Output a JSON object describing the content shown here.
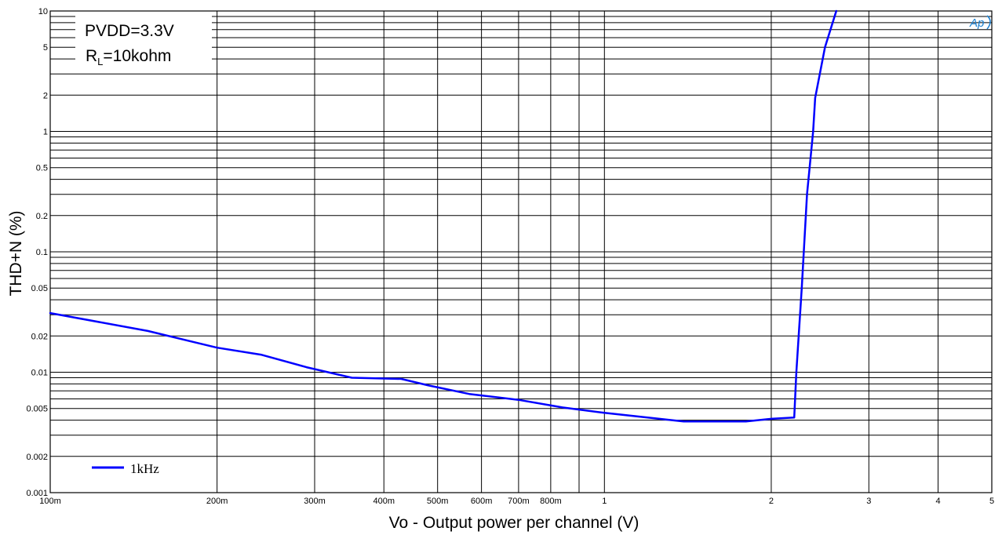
{
  "chart_data": {
    "type": "line",
    "xlabel": "Vo - Output power per channel (V)",
    "ylabel": "THD+N (%)",
    "xscale": "log",
    "yscale": "log",
    "xlim": [
      0.1,
      5
    ],
    "ylim": [
      0.001,
      10
    ],
    "grid": true,
    "legend_placement": "bottom-left",
    "x_tick_labels": [
      {
        "value": 0.1,
        "label": "100m"
      },
      {
        "value": 0.2,
        "label": "200m"
      },
      {
        "value": 0.3,
        "label": "300m"
      },
      {
        "value": 0.4,
        "label": "400m"
      },
      {
        "value": 0.5,
        "label": "500m"
      },
      {
        "value": 0.6,
        "label": "600m"
      },
      {
        "value": 0.7,
        "label": "700m"
      },
      {
        "value": 0.8,
        "label": "800m"
      },
      {
        "value": 1,
        "label": "1"
      },
      {
        "value": 2,
        "label": "2"
      },
      {
        "value": 3,
        "label": "3"
      },
      {
        "value": 4,
        "label": "4"
      },
      {
        "value": 5,
        "label": "5"
      }
    ],
    "y_tick_labels": [
      {
        "value": 10,
        "label": "10"
      },
      {
        "value": 5,
        "label": "5"
      },
      {
        "value": 2,
        "label": "2"
      },
      {
        "value": 1,
        "label": "1"
      },
      {
        "value": 0.5,
        "label": "0.5"
      },
      {
        "value": 0.2,
        "label": "0.2"
      },
      {
        "value": 0.1,
        "label": "0.1"
      },
      {
        "value": 0.05,
        "label": "0.05"
      },
      {
        "value": 0.02,
        "label": "0.02"
      },
      {
        "value": 0.01,
        "label": "0.01"
      },
      {
        "value": 0.005,
        "label": "0.005"
      },
      {
        "value": 0.002,
        "label": "0.002"
      },
      {
        "value": 0.001,
        "label": "0.001"
      }
    ],
    "x_grid_values": [
      0.1,
      0.2,
      0.3,
      0.4,
      0.5,
      0.6,
      0.7,
      0.8,
      0.9,
      1,
      2,
      3,
      4,
      5
    ],
    "y_grid_values": [
      0.001,
      0.002,
      0.003,
      0.004,
      0.005,
      0.006,
      0.007,
      0.008,
      0.009,
      0.01,
      0.02,
      0.03,
      0.04,
      0.05,
      0.06,
      0.07,
      0.08,
      0.09,
      0.1,
      0.2,
      0.3,
      0.4,
      0.5,
      0.6,
      0.7,
      0.8,
      0.9,
      1,
      2,
      3,
      4,
      5,
      6,
      7,
      8,
      9,
      10
    ],
    "series": [
      {
        "name": "1kHz",
        "color": "#0000ff",
        "x": [
          0.1,
          0.15,
          0.2,
          0.24,
          0.29,
          0.35,
          0.43,
          0.48,
          0.57,
          0.7,
          0.84,
          1.0,
          1.39,
          1.8,
          2.0,
          2.2,
          2.22,
          2.27,
          2.32,
          2.38,
          2.4,
          2.5,
          2.62
        ],
        "y": [
          0.031,
          0.022,
          0.016,
          0.014,
          0.011,
          0.009,
          0.0088,
          0.0078,
          0.0066,
          0.0059,
          0.0051,
          0.0046,
          0.0039,
          0.0039,
          0.0041,
          0.0042,
          0.01,
          0.05,
          0.3,
          1.0,
          1.9,
          5.0,
          10.0
        ]
      }
    ],
    "annotations": [
      "PVDD=3.3V",
      "R",
      "L",
      "=10kohm"
    ],
    "legend": {
      "label": "1kHz",
      "color": "#0000ff"
    },
    "brand_mark": "Ap",
    "colors": {
      "grid": "#000000",
      "line": "#0000ff",
      "brand": "#1a7fd0"
    }
  }
}
